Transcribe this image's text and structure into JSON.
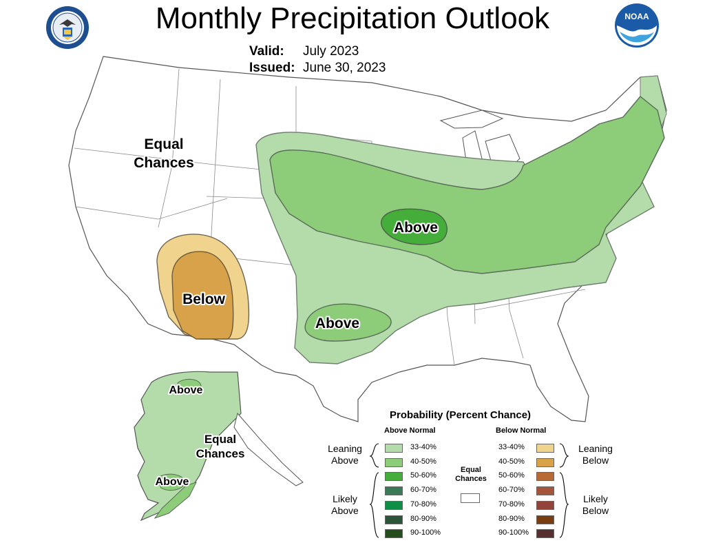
{
  "header": {
    "title": "Monthly Precipitation Outlook",
    "valid_label": "Valid:",
    "valid_value": "July 2023",
    "issued_label": "Issued:",
    "issued_value": "June 30, 2023"
  },
  "logos": {
    "left": "department-of-commerce-seal",
    "right": "noaa-logo",
    "noaa_text": "NOAA"
  },
  "map_labels": {
    "west_equal": "Equal Chances",
    "central_above": "Above",
    "southern_above": "Above",
    "southwest_below": "Below",
    "alaska_above_north": "Above",
    "alaska_equal": "Equal Chances",
    "alaska_above_south": "Above"
  },
  "legend": {
    "title": "Probability (Percent Chance)",
    "above_header": "Above Normal",
    "below_header": "Below Normal",
    "equal_label": "Equal Chances",
    "leaning_above": "Leaning Above",
    "likely_above": "Likely Above",
    "leaning_below": "Leaning Below",
    "likely_below": "Likely Below",
    "above_bins": [
      {
        "label": "33-40%",
        "color": "#b3dcaa"
      },
      {
        "label": "40-50%",
        "color": "#8dcc78"
      },
      {
        "label": "50-60%",
        "color": "#45ae3b"
      },
      {
        "label": "60-70%",
        "color": "#3b7a57"
      },
      {
        "label": "70-80%",
        "color": "#0f8f46"
      },
      {
        "label": "80-90%",
        "color": "#2b5438"
      },
      {
        "label": "90-100%",
        "color": "#264d1c"
      }
    ],
    "below_bins": [
      {
        "label": "33-40%",
        "color": "#f0d48e"
      },
      {
        "label": "40-50%",
        "color": "#d8a24b"
      },
      {
        "label": "50-60%",
        "color": "#b86a36"
      },
      {
        "label": "60-70%",
        "color": "#a5553a"
      },
      {
        "label": "70-80%",
        "color": "#93443a"
      },
      {
        "label": "80-90%",
        "color": "#7a3d10"
      },
      {
        "label": "90-100%",
        "color": "#55302e"
      }
    ]
  }
}
